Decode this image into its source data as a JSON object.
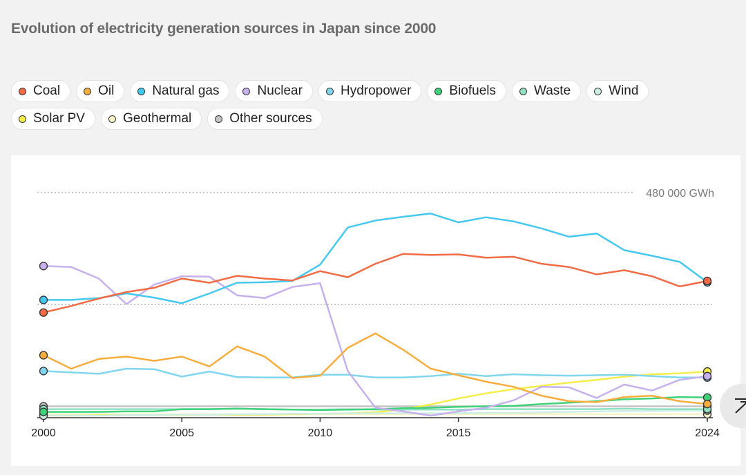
{
  "title": "Evolution of electricity generation sources in Japan since 2000",
  "legend": [
    {
      "label": "Coal",
      "color": "#f26b45"
    },
    {
      "label": "Oil",
      "color": "#f7ad3e"
    },
    {
      "label": "Natural gas",
      "color": "#45c8f0"
    },
    {
      "label": "Nuclear",
      "color": "#c6b0ee"
    },
    {
      "label": "Hydropower",
      "color": "#7fd6ee"
    },
    {
      "label": "Biofuels",
      "color": "#3fd27a"
    },
    {
      "label": "Waste",
      "color": "#8fe0c0"
    },
    {
      "label": "Wind",
      "color": "#cdeee0"
    },
    {
      "label": "Solar PV",
      "color": "#f5ee4a"
    },
    {
      "label": "Geothermal",
      "color": "#f7f2c8"
    },
    {
      "label": "Other sources",
      "color": "#c4c4c4"
    }
  ],
  "scroll_top_icon": "arrow-up-to-line-icon",
  "chart_data": {
    "type": "line",
    "x": [
      2000,
      2001,
      2002,
      2003,
      2004,
      2005,
      2006,
      2007,
      2008,
      2009,
      2010,
      2011,
      2012,
      2013,
      2014,
      2015,
      2016,
      2017,
      2018,
      2019,
      2020,
      2021,
      2022,
      2023,
      2024
    ],
    "x_ticks": [
      "2000",
      "2005",
      "2010",
      "2015",
      "2024"
    ],
    "y_ticks": [
      240000,
      480000
    ],
    "y_tick_label": "480 000 GWh",
    "ylim": [
      0,
      480000
    ],
    "grid": "dotted horizontal at 240 000 and 480 000 GWh",
    "series": [
      {
        "name": "Coal",
        "color": "#f26b45",
        "values": [
          222000,
          236000,
          252000,
          266000,
          275000,
          295000,
          286000,
          301000,
          295000,
          291000,
          311000,
          298000,
          327000,
          348000,
          346000,
          347000,
          340000,
          342000,
          327000,
          320000,
          304000,
          313000,
          300000,
          278000,
          290000
        ]
      },
      {
        "name": "Oil",
        "color": "#f7ad3e",
        "values": [
          130000,
          101000,
          122000,
          127000,
          118000,
          127000,
          106000,
          149000,
          127000,
          81000,
          86000,
          146000,
          177000,
          142000,
          101000,
          87000,
          73000,
          62000,
          43000,
          31000,
          29000,
          40000,
          43000,
          31000,
          25000
        ]
      },
      {
        "name": "Natural gas",
        "color": "#45c8f0",
        "values": [
          249000,
          249000,
          253000,
          263000,
          254000,
          242000,
          263000,
          286000,
          287000,
          290000,
          325000,
          405000,
          420000,
          428000,
          435000,
          416000,
          427000,
          418000,
          403000,
          385000,
          392000,
          356000,
          344000,
          331000,
          287000
        ]
      },
      {
        "name": "Nuclear",
        "color": "#c6b0ee",
        "values": [
          322000,
          320000,
          295000,
          240000,
          282000,
          300000,
          299000,
          259000,
          253000,
          277000,
          285000,
          96000,
          17000,
          9000,
          0,
          9000,
          17000,
          33000,
          62000,
          61000,
          38000,
          67000,
          54000,
          77000,
          85000
        ]
      },
      {
        "name": "Hydropower",
        "color": "#7fd6ee",
        "values": [
          96000,
          93000,
          90000,
          101000,
          100000,
          84000,
          95000,
          83000,
          82000,
          82000,
          88000,
          88000,
          82000,
          82000,
          85000,
          90000,
          85000,
          89000,
          87000,
          86000,
          87000,
          88000,
          85000,
          82000,
          82000
        ]
      },
      {
        "name": "Biofuels",
        "color": "#3fd27a",
        "values": [
          8000,
          8000,
          8000,
          9000,
          9000,
          14000,
          14000,
          15000,
          14000,
          13000,
          12000,
          13000,
          14000,
          16000,
          17000,
          19000,
          20000,
          21000,
          25000,
          28000,
          31000,
          35000,
          37000,
          40000,
          39000
        ]
      },
      {
        "name": "Waste",
        "color": "#8fe0c0",
        "values": [
          14000,
          14000,
          14000,
          14000,
          14000,
          14000,
          14000,
          15000,
          14000,
          13000,
          13000,
          14000,
          13000,
          13000,
          13000,
          13000,
          14000,
          14000,
          14000,
          14000,
          14000,
          15000,
          14000,
          14000,
          14000
        ]
      },
      {
        "name": "Wind",
        "color": "#cdeee0",
        "values": [
          0,
          0,
          0,
          1000,
          1000,
          2000,
          2000,
          3000,
          3000,
          4000,
          4000,
          5000,
          5000,
          5000,
          5000,
          5000,
          6000,
          6000,
          7000,
          8000,
          9000,
          10000,
          10000,
          11000,
          11000
        ]
      },
      {
        "name": "Solar PV",
        "color": "#f5ee4a",
        "values": [
          0,
          0,
          1000,
          1000,
          1000,
          1000,
          2000,
          2000,
          2000,
          3000,
          4000,
          5000,
          7000,
          14000,
          24000,
          37000,
          48000,
          57000,
          64000,
          71000,
          77000,
          84000,
          89000,
          91000,
          95000
        ]
      },
      {
        "name": "Geothermal",
        "color": "#f7f2c8",
        "values": [
          3000,
          3000,
          3000,
          3000,
          3000,
          3000,
          3000,
          3000,
          3000,
          3000,
          3000,
          3000,
          3000,
          3000,
          3000,
          3000,
          3000,
          3000,
          3000,
          3000,
          3000,
          3000,
          3000,
          3000,
          3000
        ]
      },
      {
        "name": "Other sources",
        "color": "#c4c4c4",
        "values": [
          20000,
          20000,
          20000,
          20000,
          20000,
          20000,
          20000,
          20000,
          20000,
          20000,
          20000,
          20000,
          20000,
          20000,
          20000,
          20000,
          20000,
          20000,
          20000,
          20000,
          20000,
          20000,
          20000,
          20000,
          20000
        ]
      }
    ]
  }
}
